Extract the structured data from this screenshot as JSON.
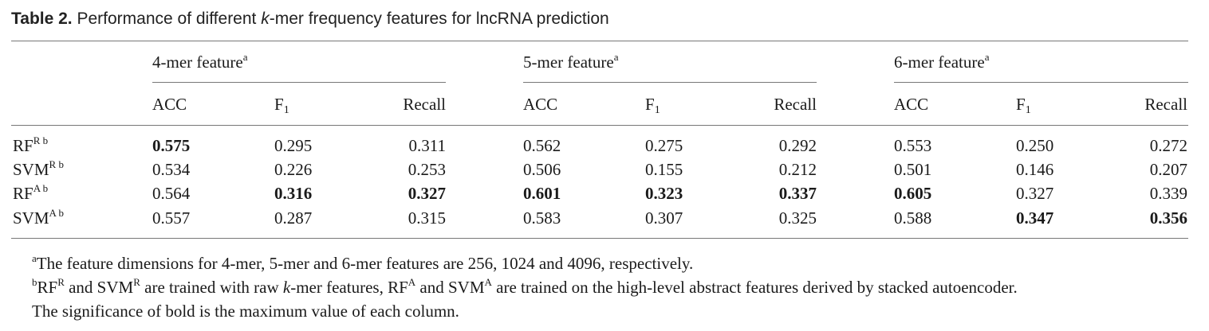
{
  "caption": {
    "label": "Table 2.",
    "text_before": " Performance of different ",
    "italic": "k",
    "text_after": "-mer frequency features for lncRNA prediction"
  },
  "groups": [
    {
      "label": "4-mer feature",
      "sup": "a"
    },
    {
      "label": "5-mer feature",
      "sup": "a"
    },
    {
      "label": "6-mer feature",
      "sup": "a"
    }
  ],
  "metrics": [
    {
      "base": "ACC",
      "sub": ""
    },
    {
      "base": "F",
      "sub": "1"
    },
    {
      "base": "Recall",
      "sub": ""
    }
  ],
  "rows": [
    {
      "base": "RF",
      "sup": "R b",
      "values": [
        "0.575",
        "0.295",
        "0.311",
        "0.562",
        "0.275",
        "0.292",
        "0.553",
        "0.250",
        "0.272"
      ],
      "bold": [
        true,
        false,
        false,
        false,
        false,
        false,
        false,
        false,
        false
      ]
    },
    {
      "base": "SVM",
      "sup": "R b",
      "values": [
        "0.534",
        "0.226",
        "0.253",
        "0.506",
        "0.155",
        "0.212",
        "0.501",
        "0.146",
        "0.207"
      ],
      "bold": [
        false,
        false,
        false,
        false,
        false,
        false,
        false,
        false,
        false
      ]
    },
    {
      "base": "RF",
      "sup": "A b",
      "values": [
        "0.564",
        "0.316",
        "0.327",
        "0.601",
        "0.323",
        "0.337",
        "0.605",
        "0.327",
        "0.339"
      ],
      "bold": [
        false,
        true,
        true,
        true,
        true,
        true,
        true,
        false,
        false
      ]
    },
    {
      "base": "SVM",
      "sup": "A b",
      "values": [
        "0.557",
        "0.287",
        "0.315",
        "0.583",
        "0.307",
        "0.325",
        "0.588",
        "0.347",
        "0.356"
      ],
      "bold": [
        false,
        false,
        false,
        false,
        false,
        false,
        false,
        true,
        true
      ]
    }
  ],
  "footnotes": {
    "a": {
      "mark": "a",
      "text": "The feature dimensions for 4-mer, 5-mer and 6-mer features are 256, 1024 and 4096, respectively."
    },
    "b": {
      "mark": "b",
      "p1": "RF",
      "s1": "R",
      "p2": " and SVM",
      "s2": "R",
      "p3": " are trained with raw ",
      "k": "k",
      "p4": "-mer features, RF",
      "s4": "A",
      "p5": " and SVM",
      "s5": "A",
      "p6": " are trained on the high-level abstract features derived by stacked autoencoder."
    },
    "c": {
      "text": "The significance of bold is the maximum value of each column."
    }
  }
}
